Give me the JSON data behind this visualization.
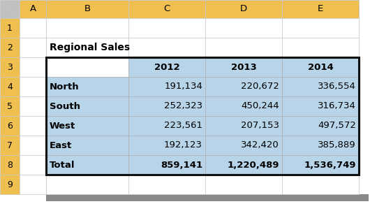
{
  "title": "Regional Sales",
  "col_headers": [
    "",
    "2012",
    "2013",
    "2014"
  ],
  "rows": [
    [
      "North",
      "191,134",
      "220,672",
      "336,554"
    ],
    [
      "South",
      "252,323",
      "450,244",
      "316,734"
    ],
    [
      "West",
      "223,561",
      "207,153",
      "497,572"
    ],
    [
      "East",
      "192,123",
      "342,420",
      "385,889"
    ],
    [
      "Total",
      "859,141",
      "1,220,489",
      "1,536,749"
    ]
  ],
  "header_bg": "#EFC050",
  "row_bg": "#B8D4E8",
  "spreadsheet_bg": "#FFFFFF",
  "grid_color": "#C8C8C8",
  "text_color": "#000000",
  "corner_bg": "#C0C0C0",
  "shadow_color": "#888888",
  "font_size": 9.5,
  "title_font_size": 10,
  "row_num_bg": "#EFC050",
  "col_letters": [
    "A",
    "B",
    "C",
    "D",
    "E"
  ],
  "row_numbers": [
    "1",
    "2",
    "3",
    "4",
    "5",
    "6",
    "7",
    "8",
    "9"
  ],
  "num_rows": 10,
  "num_cols": 6
}
